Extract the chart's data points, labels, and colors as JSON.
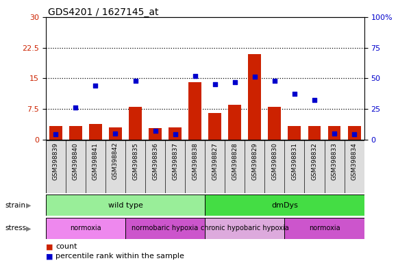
{
  "title": "GDS4201 / 1627145_at",
  "samples": [
    "GSM398839",
    "GSM398840",
    "GSM398841",
    "GSM398842",
    "GSM398835",
    "GSM398836",
    "GSM398837",
    "GSM398838",
    "GSM398827",
    "GSM398828",
    "GSM398829",
    "GSM398830",
    "GSM398831",
    "GSM398832",
    "GSM398833",
    "GSM398834"
  ],
  "counts": [
    3.2,
    3.3,
    3.8,
    3.0,
    8.0,
    2.8,
    3.0,
    14.0,
    6.5,
    8.5,
    21.0,
    8.0,
    3.2,
    3.2,
    3.2,
    3.2
  ],
  "percentile_ranks": [
    4.0,
    26.0,
    44.0,
    5.0,
    48.0,
    7.0,
    4.0,
    52.0,
    45.0,
    47.0,
    51.0,
    48.0,
    37.0,
    32.0,
    5.0,
    4.0
  ],
  "ylim_left": [
    0,
    30
  ],
  "ylim_right": [
    0,
    100
  ],
  "yticks_left": [
    0,
    7.5,
    15,
    22.5,
    30
  ],
  "yticks_right": [
    0,
    25,
    50,
    75,
    100
  ],
  "ytick_labels_left": [
    "0",
    "7.5",
    "15",
    "22.5",
    "30"
  ],
  "ytick_labels_right": [
    "0",
    "25",
    "50",
    "75",
    "100%"
  ],
  "bar_color": "#cc2200",
  "dot_color": "#0000cc",
  "strain_labels": [
    {
      "text": "wild type",
      "start": 0,
      "end": 8,
      "color": "#99ee99"
    },
    {
      "text": "dmDys",
      "start": 8,
      "end": 16,
      "color": "#44dd44"
    }
  ],
  "stress_labels": [
    {
      "text": "normoxia",
      "start": 0,
      "end": 4,
      "color": "#ee88ee"
    },
    {
      "text": "normobaric hypoxia",
      "start": 4,
      "end": 8,
      "color": "#cc55cc"
    },
    {
      "text": "chronic hypobaric hypoxia",
      "start": 8,
      "end": 12,
      "color": "#ddaadd"
    },
    {
      "text": "normoxia",
      "start": 12,
      "end": 16,
      "color": "#cc55cc"
    }
  ],
  "left_axis_color": "#cc2200",
  "right_axis_color": "#0000cc",
  "background_color": "#ffffff",
  "grid_color": "#000000",
  "tick_label_bg": "#dddddd"
}
